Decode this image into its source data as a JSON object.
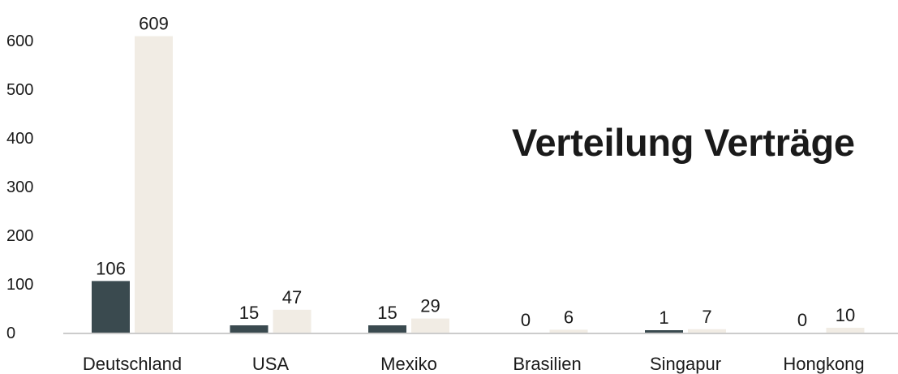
{
  "chart_data": {
    "type": "bar",
    "title": "Verteilung Verträge",
    "categories": [
      "Deutschland",
      "USA",
      "Mexiko",
      "Brasilien",
      "Singapur",
      "Hongkong"
    ],
    "series": [
      {
        "values": [
          106,
          15,
          15,
          0,
          1,
          0
        ],
        "color": "#3a4a4f"
      },
      {
        "values": [
          609,
          47,
          29,
          6,
          7,
          10
        ],
        "color": "#f1ece4"
      }
    ],
    "y_ticks": [
      0,
      100,
      200,
      300,
      400,
      500,
      600
    ],
    "ylim": [
      0,
      620
    ],
    "grid": false,
    "legend": "none"
  }
}
